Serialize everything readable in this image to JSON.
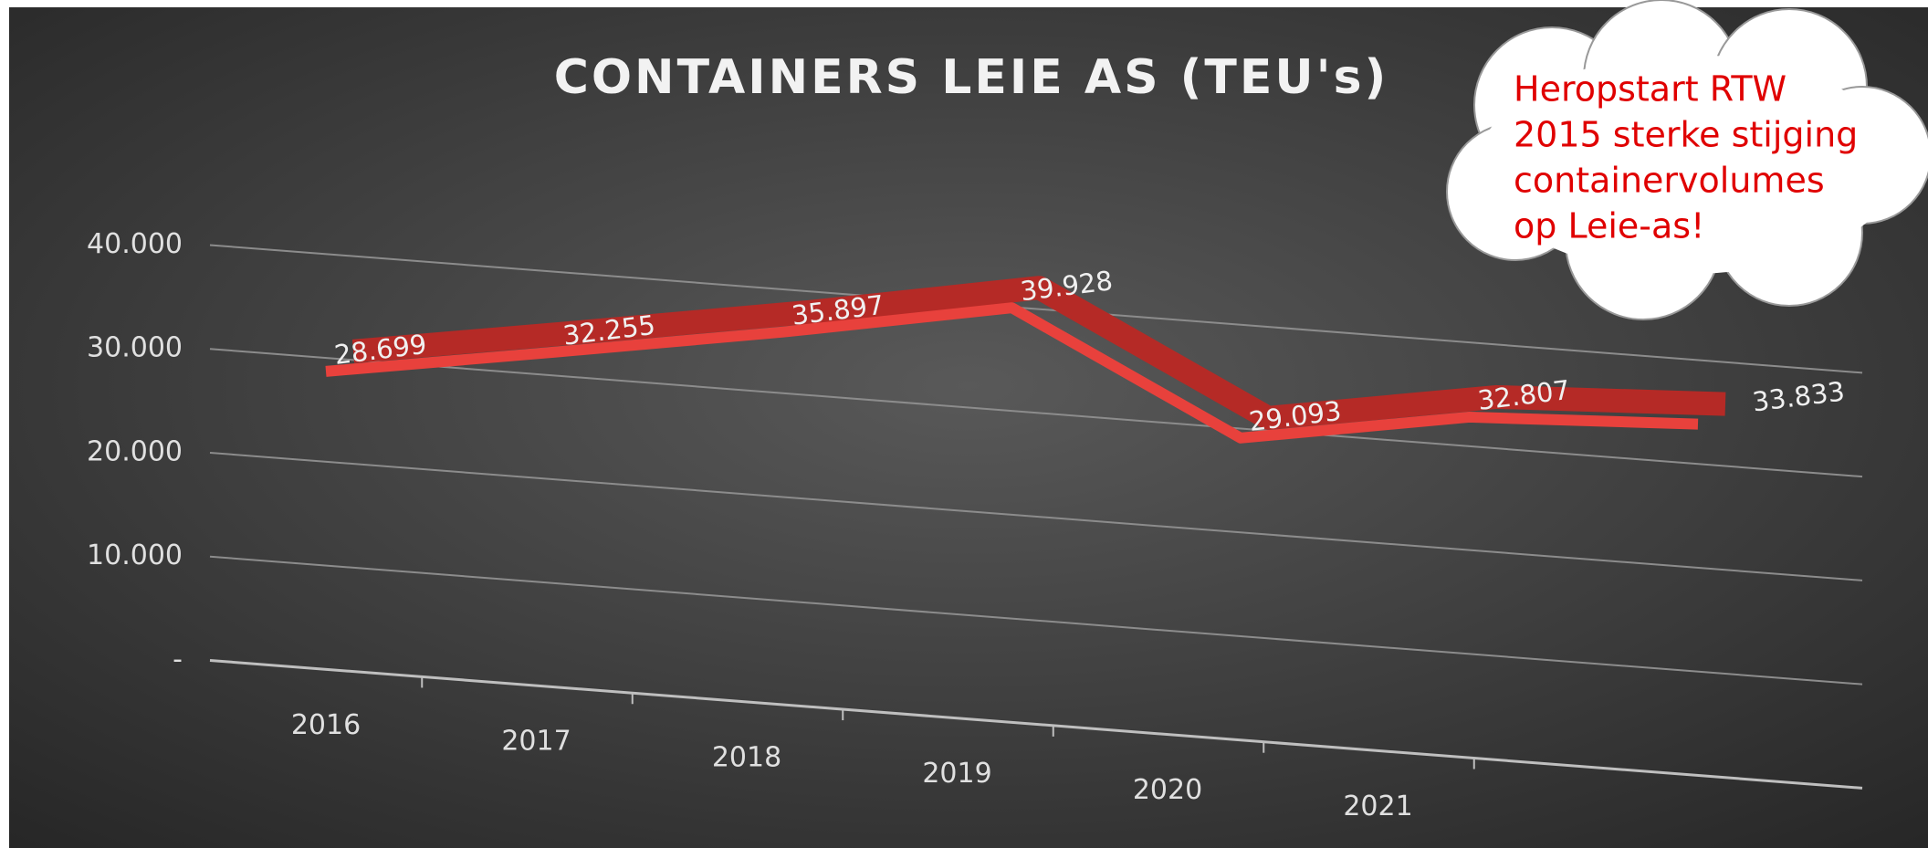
{
  "chart_data": {
    "type": "line",
    "title": "CONTAINERS LEIE AS (TEU's)",
    "categories": [
      "2016",
      "2017",
      "2018",
      "2019",
      "2020",
      "2021",
      null
    ],
    "values": [
      28699,
      32255,
      35897,
      39928,
      29093,
      32807,
      33833
    ],
    "value_labels": [
      "28.699",
      "32.255",
      "35.897",
      "39.928",
      "29.093",
      "32.807",
      "33.833"
    ],
    "color": "#e8413c",
    "ylim": [
      0,
      40000
    ],
    "yticks": [
      {
        "value": 0,
        "label": "-"
      },
      {
        "value": 10000,
        "label": "10.000"
      },
      {
        "value": 20000,
        "label": "20.000"
      },
      {
        "value": 30000,
        "label": "30.000"
      },
      {
        "value": 40000,
        "label": "40.000"
      }
    ],
    "grid": true,
    "annotation": [
      "Heropstart RTW",
      "2015 sterke stijging",
      "containervolumes",
      "op Leie-as!"
    ]
  }
}
